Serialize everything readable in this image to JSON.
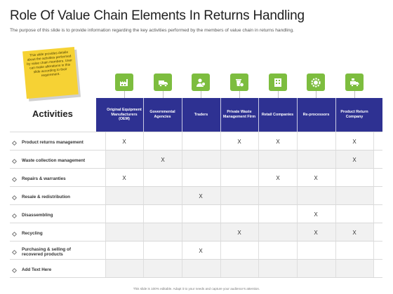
{
  "slide": {
    "title": "Role Of Value Chain Elements In Returns Handling",
    "subtitle": "The purpose of this slide is to provide information regarding the key activities performed by the members  of value chain in returns handling.",
    "note": "This slide provides details about the activities performed by value chain members. User can make alterations in this slide according to their requirement.",
    "activities_heading": "Activities",
    "footer": "This slide is 100% editable. Adapt it to your needs and capture your audience's attention."
  },
  "colors": {
    "header": "#2e3192",
    "icon_box": "#7dbd3f",
    "note": "#f6d234"
  },
  "members": [
    {
      "label": "Original Equipment Manufacturers (OEM)",
      "icon": "factory-icon"
    },
    {
      "label": "Governmental Agencies",
      "icon": "truck-icon"
    },
    {
      "label": "Traders",
      "icon": "trader-icon"
    },
    {
      "label": "Private Waste Management Firm",
      "icon": "recycle-bin-icon"
    },
    {
      "label": "Retail Companies",
      "icon": "building-icon"
    },
    {
      "label": "Re-processors",
      "icon": "gear-icon"
    },
    {
      "label": "Product Return Company",
      "icon": "delivery-van-icon"
    }
  ],
  "activities": [
    {
      "label": "Product returns management",
      "marks": [
        "X",
        "",
        "",
        "X",
        "X",
        "",
        "X"
      ]
    },
    {
      "label": "Waste collection management",
      "marks": [
        "",
        "X",
        "",
        "",
        "",
        "",
        "X"
      ]
    },
    {
      "label": "Repairs & warranties",
      "marks": [
        "X",
        "",
        "",
        "",
        "X",
        "X",
        ""
      ]
    },
    {
      "label": "Resale & redistribution",
      "marks": [
        "",
        "",
        "X",
        "",
        "",
        "",
        ""
      ]
    },
    {
      "label": "Disassembling",
      "marks": [
        "",
        "",
        "",
        "",
        "",
        "X",
        ""
      ]
    },
    {
      "label": "Recycling",
      "marks": [
        "",
        "",
        "",
        "X",
        "",
        "X",
        "X"
      ]
    },
    {
      "label": "Purchasing & selling of recovered products",
      "marks": [
        "",
        "",
        "X",
        "",
        "",
        "",
        ""
      ]
    },
    {
      "label": "Add Text Here",
      "marks": [
        "",
        "",
        "",
        "",
        "",
        "",
        ""
      ]
    }
  ]
}
